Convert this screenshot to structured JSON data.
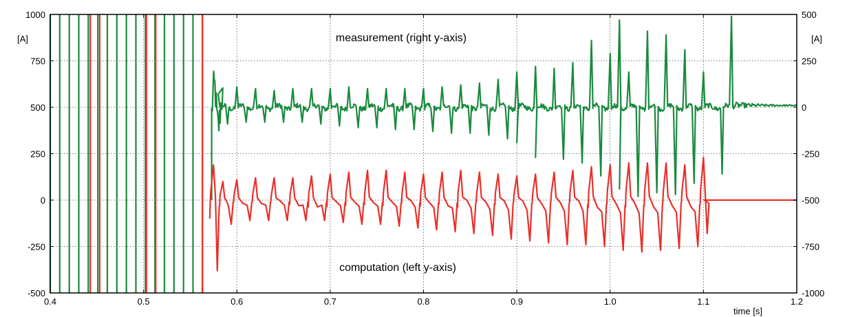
{
  "chart_data": {
    "type": "line",
    "title": "",
    "xlabel": "time [s]",
    "ylabel_left": "[A]",
    "ylabel_right": "[A]",
    "xlim": [
      0.4,
      1.2
    ],
    "ylim_left": [
      -500,
      1000
    ],
    "ylim_right": [
      -1000,
      500
    ],
    "x_ticks": [
      "0.4",
      "0.5",
      "0.6",
      "0.7",
      "0.8",
      "0.9",
      "1.0",
      "1.1",
      "1.2"
    ],
    "y_ticks_left": [
      "1000",
      "750",
      "500",
      "250",
      "0",
      "-250",
      "-500"
    ],
    "y_ticks_right": [
      "500",
      "250",
      "0",
      "-250",
      "-500",
      "-750",
      "-1000"
    ],
    "grid": true,
    "annotations": {
      "measurement": "measurement (right y-axis)",
      "computation": "computation (left y-axis)"
    },
    "colors": {
      "measurement": "#1a8a3e",
      "computation": "#e8302a",
      "grid": "#555555",
      "axis": "#000000"
    },
    "series": [
      {
        "key": "measurement",
        "axis": "right",
        "color": "#1a8a3e",
        "energization_end": 0.573,
        "energization_period": 0.0102,
        "energization_amplitude": 1000,
        "cycle_period": 0.02,
        "first_cycle": 0.58,
        "spike_peaks": [
          [
            0.58,
            70
          ],
          [
            0.6,
            110
          ],
          [
            0.62,
            100
          ],
          [
            0.64,
            90
          ],
          [
            0.66,
            100
          ],
          [
            0.68,
            100
          ],
          [
            0.7,
            100
          ],
          [
            0.72,
            110
          ],
          [
            0.74,
            100
          ],
          [
            0.76,
            100
          ],
          [
            0.78,
            100
          ],
          [
            0.8,
            100
          ],
          [
            0.82,
            110
          ],
          [
            0.84,
            120
          ],
          [
            0.86,
            130
          ],
          [
            0.88,
            150
          ],
          [
            0.9,
            190
          ],
          [
            0.92,
            220
          ],
          [
            0.94,
            210
          ],
          [
            0.96,
            240
          ],
          [
            0.98,
            360
          ],
          [
            1.0,
            290
          ],
          [
            1.01,
            470
          ],
          [
            1.02,
            190
          ],
          [
            1.04,
            410
          ],
          [
            1.06,
            390
          ],
          [
            1.08,
            310
          ],
          [
            1.1,
            190
          ],
          [
            1.13,
            490
          ]
        ],
        "spike_troughs": [
          [
            0.59,
            -90
          ],
          [
            0.61,
            -80
          ],
          [
            0.63,
            -80
          ],
          [
            0.65,
            -80
          ],
          [
            0.67,
            -80
          ],
          [
            0.69,
            -90
          ],
          [
            0.71,
            -100
          ],
          [
            0.73,
            -110
          ],
          [
            0.75,
            -110
          ],
          [
            0.77,
            -120
          ],
          [
            0.79,
            -120
          ],
          [
            0.81,
            -130
          ],
          [
            0.83,
            -140
          ],
          [
            0.85,
            -140
          ],
          [
            0.87,
            -150
          ],
          [
            0.89,
            -170
          ],
          [
            0.9,
            -190
          ],
          [
            0.92,
            -270
          ],
          [
            0.95,
            -280
          ],
          [
            0.97,
            -300
          ],
          [
            0.99,
            -370
          ],
          [
            1.01,
            -440
          ],
          [
            1.03,
            -480
          ],
          [
            1.05,
            -460
          ],
          [
            1.07,
            -470
          ],
          [
            1.09,
            -410
          ],
          [
            1.12,
            -360
          ]
        ],
        "tail_value": 10
      },
      {
        "key": "computation",
        "axis": "left",
        "color": "#e8302a",
        "energization_end": 0.563,
        "energization_times": [
          0.443,
          0.453,
          0.503,
          0.513,
          0.563
        ],
        "energization_amplitude": 1000,
        "cycle_period": 0.02,
        "spike_peaks": [
          [
            0.575,
            190
          ],
          [
            0.585,
            100
          ],
          [
            0.6,
            110
          ],
          [
            0.62,
            120
          ],
          [
            0.64,
            120
          ],
          [
            0.66,
            120
          ],
          [
            0.68,
            130
          ],
          [
            0.7,
            140
          ],
          [
            0.72,
            150
          ],
          [
            0.74,
            160
          ],
          [
            0.76,
            160
          ],
          [
            0.78,
            150
          ],
          [
            0.8,
            140
          ],
          [
            0.82,
            150
          ],
          [
            0.84,
            160
          ],
          [
            0.86,
            150
          ],
          [
            0.88,
            140
          ],
          [
            0.9,
            130
          ],
          [
            0.92,
            140
          ],
          [
            0.94,
            150
          ],
          [
            0.96,
            160
          ],
          [
            0.98,
            180
          ],
          [
            1.0,
            190
          ],
          [
            1.02,
            200
          ],
          [
            1.04,
            200
          ],
          [
            1.06,
            200
          ],
          [
            1.08,
            190
          ],
          [
            1.1,
            230
          ]
        ],
        "spike_troughs": [
          [
            0.575,
            -380
          ],
          [
            0.59,
            -130
          ],
          [
            0.61,
            -110
          ],
          [
            0.63,
            -110
          ],
          [
            0.65,
            -110
          ],
          [
            0.67,
            -110
          ],
          [
            0.69,
            -110
          ],
          [
            0.71,
            -120
          ],
          [
            0.73,
            -130
          ],
          [
            0.75,
            -130
          ],
          [
            0.77,
            -140
          ],
          [
            0.79,
            -150
          ],
          [
            0.81,
            -160
          ],
          [
            0.83,
            -170
          ],
          [
            0.85,
            -180
          ],
          [
            0.87,
            -190
          ],
          [
            0.89,
            -210
          ],
          [
            0.91,
            -220
          ],
          [
            0.93,
            -230
          ],
          [
            0.95,
            -240
          ],
          [
            0.97,
            -240
          ],
          [
            0.99,
            -250
          ],
          [
            1.01,
            -270
          ],
          [
            1.03,
            -280
          ],
          [
            1.05,
            -270
          ],
          [
            1.07,
            -260
          ],
          [
            1.09,
            -250
          ],
          [
            1.1,
            -180
          ]
        ],
        "tail_value": 0
      }
    ]
  }
}
